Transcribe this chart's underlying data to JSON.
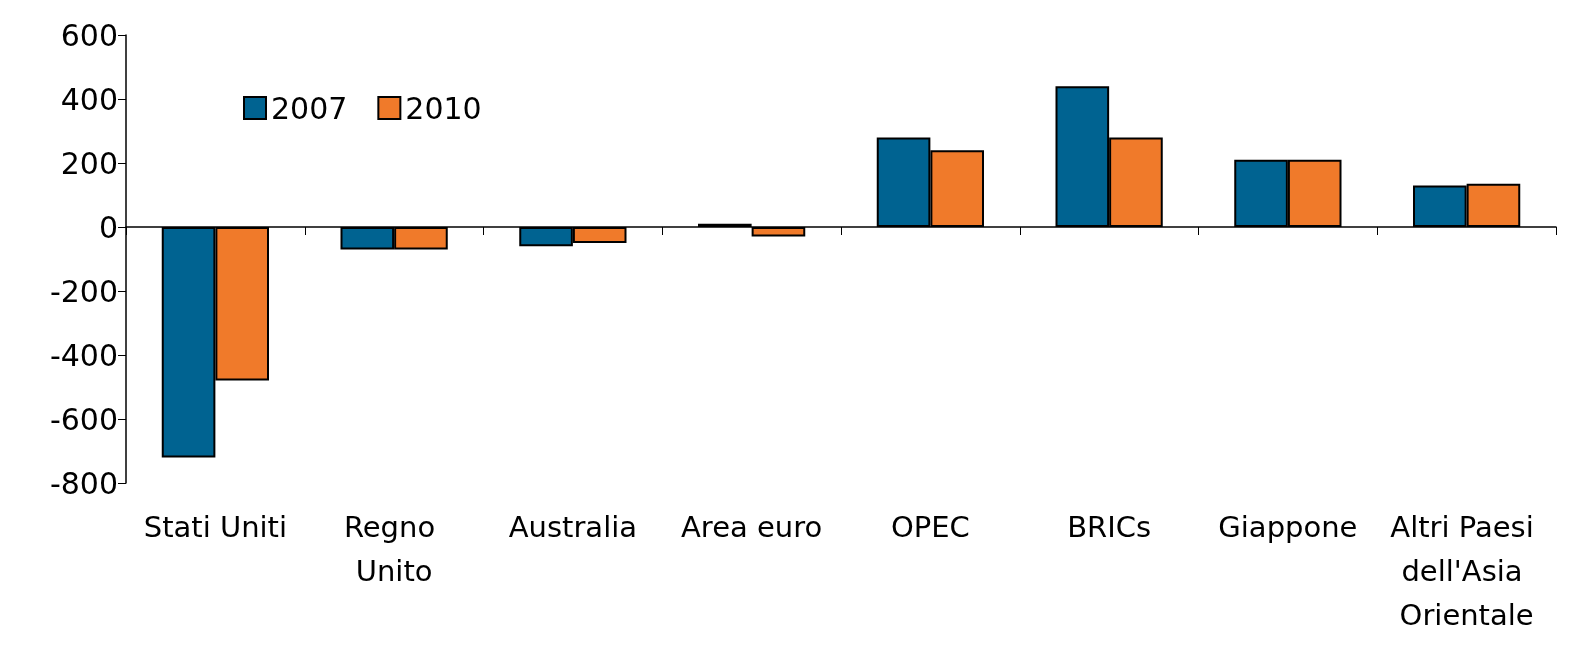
{
  "chart_data": {
    "type": "bar",
    "categories": [
      "Stati Uniti",
      "Regno Unito",
      "Australia",
      "Area euro",
      "OPEC",
      "BRICs",
      "Giappone",
      "Altri Paesi dell'Asia Orientale"
    ],
    "series": [
      {
        "name": "2007",
        "color": "#006391",
        "values": [
          -720,
          -70,
          -60,
          10,
          280,
          440,
          210,
          130
        ]
      },
      {
        "name": "2010",
        "color": "#f07a2a",
        "values": [
          -480,
          -70,
          -50,
          -30,
          240,
          280,
          210,
          135
        ]
      }
    ],
    "ylim": [
      -800,
      600
    ],
    "yticks": [
      -800,
      -600,
      -400,
      -200,
      0,
      200,
      400,
      600
    ],
    "legend": "top left"
  }
}
